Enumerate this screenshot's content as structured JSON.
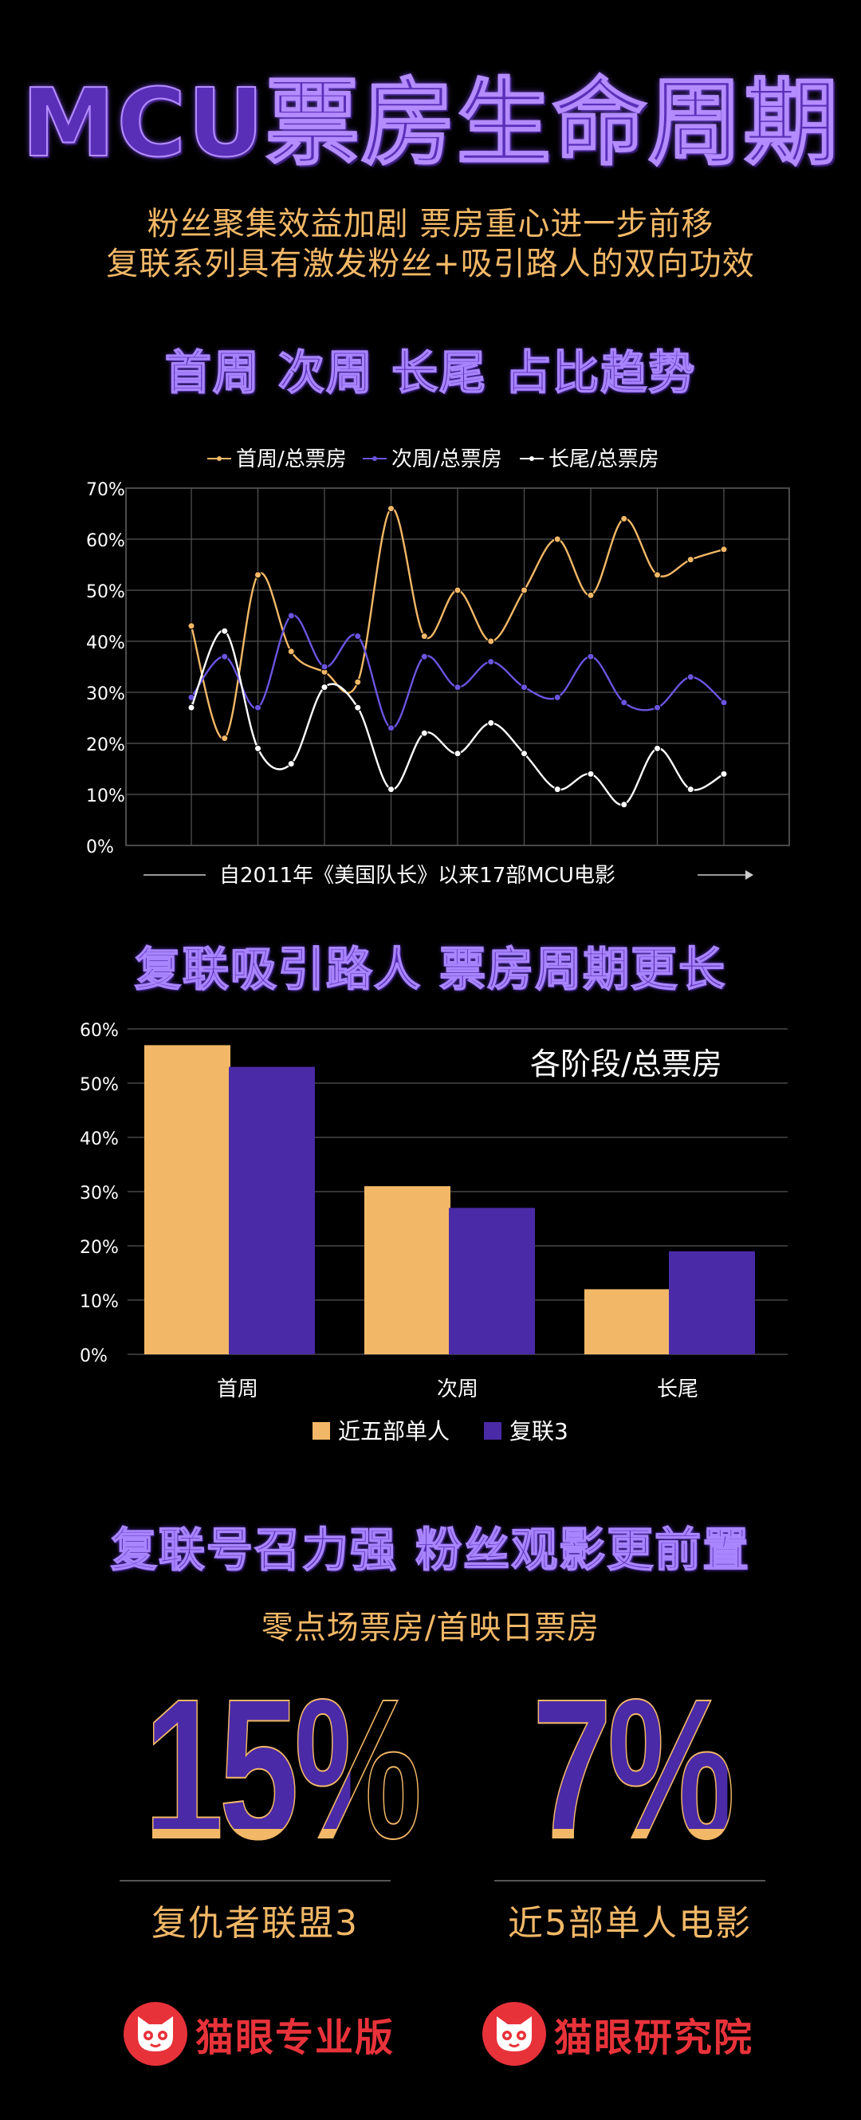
{
  "title": "MCU票房生命周期",
  "subtitle_lines": [
    "粉丝聚集效益加剧 票房重心进一步前移",
    "复联系列具有激发粉丝+吸引路人的双向功效"
  ],
  "colors": {
    "orange": "#f3b867",
    "purple": "#4a2aa6",
    "white": "#ffffff",
    "background": "#000000"
  },
  "section1_title": "首周  次周  长尾  占比趋势",
  "section2_title": "复联吸引路人 票房周期更长",
  "section3_title": "复联号召力强 粉丝观影更前置",
  "chart_data": [
    {
      "type": "line",
      "title": "",
      "legend_position": "top",
      "x": [
        1,
        2,
        3,
        4,
        5,
        6,
        7,
        8,
        9,
        10,
        11,
        12,
        13,
        14,
        15,
        16,
        17
      ],
      "xlabel": "自2011年《美国队长》以来17部MCU电影",
      "ylabel": "",
      "yticks": [
        "0%",
        "10%",
        "20%",
        "30%",
        "40%",
        "50%",
        "60%",
        "70%"
      ],
      "ylim": [
        0,
        70
      ],
      "grid": true,
      "series": [
        {
          "name": "首周/总票房",
          "color": "#f3b867",
          "values": [
            43,
            21,
            53,
            38,
            34,
            32,
            66,
            41,
            50,
            40,
            50,
            60,
            49,
            64,
            53,
            56,
            58
          ]
        },
        {
          "name": "次周/总票房",
          "color": "#6a55e0",
          "values": [
            29,
            37,
            27,
            45,
            35,
            41,
            23,
            37,
            31,
            36,
            31,
            29,
            37,
            28,
            27,
            33,
            28
          ]
        },
        {
          "name": "长尾/总票房",
          "color": "#ffffff",
          "values": [
            27,
            42,
            19,
            16,
            31,
            27,
            11,
            22,
            18,
            24,
            18,
            11,
            14,
            8,
            19,
            11,
            14
          ]
        }
      ]
    },
    {
      "type": "bar",
      "title": "各阶段/总票房",
      "categories": [
        "首周",
        "次周",
        "长尾"
      ],
      "ylim": [
        0,
        60
      ],
      "yticks": [
        "0%",
        "10%",
        "20%",
        "30%",
        "40%",
        "50%",
        "60%"
      ],
      "grid": true,
      "legend_position": "bottom",
      "series": [
        {
          "name": "近五部单人",
          "color": "#f3b867",
          "values": [
            57,
            31,
            12
          ]
        },
        {
          "name": "复联3",
          "color": "#4a2aa6",
          "values": [
            53,
            27,
            19
          ]
        }
      ]
    }
  ],
  "stats": {
    "label": "零点场票房/首映日票房",
    "items": [
      {
        "value": "15%",
        "name": "复仇者联盟3"
      },
      {
        "value": "7%",
        "name": "近5部单人电影"
      }
    ]
  },
  "logos": [
    {
      "name": "猫眼专业版",
      "icon": "cat-icon"
    },
    {
      "name": "猫眼研究院",
      "icon": "cat-icon"
    }
  ]
}
